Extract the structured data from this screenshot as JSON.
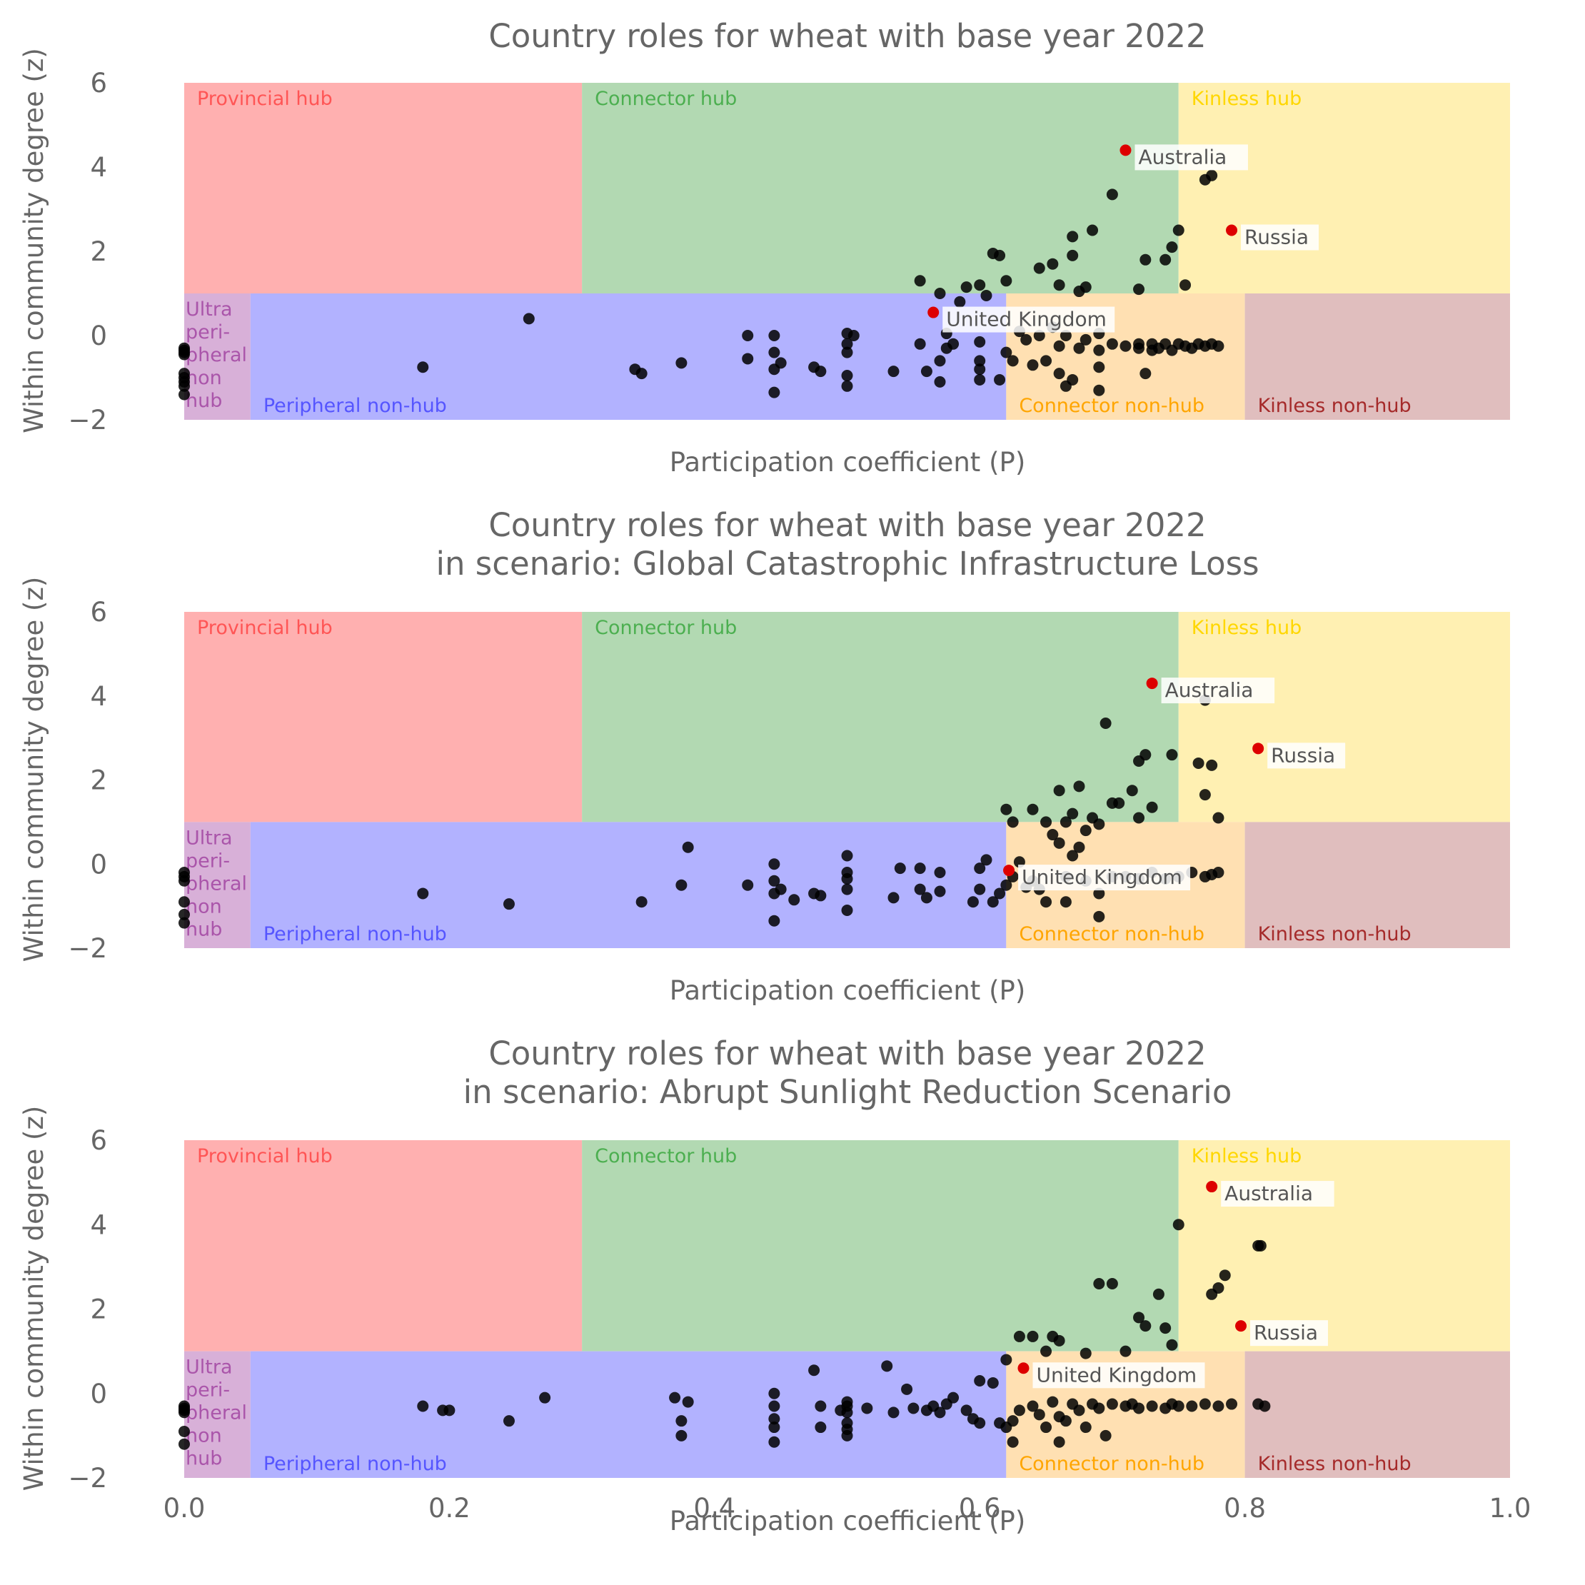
{
  "chart_data": [
    {
      "type": "scatter",
      "title": [
        "Country roles for wheat with base year 2022"
      ],
      "xlabel": "Participation coefficient (P)",
      "ylabel": "Within community degree (z)",
      "xlim": [
        0.0,
        1.0
      ],
      "ylim": [
        -2,
        6
      ],
      "x_ticks": [],
      "y_ticks": [
        "−2",
        "0",
        "2",
        "4",
        "6"
      ],
      "highlighted": [
        {
          "label": "Australia",
          "x": 0.71,
          "y": 4.4
        },
        {
          "label": "Russia",
          "x": 0.79,
          "y": 2.5
        },
        {
          "label": "United Kingdom",
          "x": 0.565,
          "y": 0.55
        }
      ],
      "points": [
        [
          0,
          -0.3
        ],
        [
          0,
          -0.35
        ],
        [
          0,
          -0.4
        ],
        [
          0,
          -0.45
        ],
        [
          0,
          -0.9
        ],
        [
          0,
          -1.0
        ],
        [
          0,
          -1.1
        ],
        [
          0,
          -1.2
        ],
        [
          0,
          -1.4
        ],
        [
          0.26,
          0.4
        ],
        [
          0.18,
          -0.75
        ],
        [
          0.34,
          -0.8
        ],
        [
          0.345,
          -0.9
        ],
        [
          0.375,
          -0.65
        ],
        [
          0.425,
          0
        ],
        [
          0.425,
          -0.55
        ],
        [
          0.445,
          0
        ],
        [
          0.445,
          -0.4
        ],
        [
          0.445,
          -0.8
        ],
        [
          0.445,
          -1.35
        ],
        [
          0.45,
          -0.65
        ],
        [
          0.475,
          -0.75
        ],
        [
          0.48,
          -0.85
        ],
        [
          0.5,
          0.05
        ],
        [
          0.5,
          -0.2
        ],
        [
          0.5,
          -0.4
        ],
        [
          0.5,
          -0.95
        ],
        [
          0.5,
          -1.2
        ],
        [
          0.505,
          0
        ],
        [
          0.535,
          -0.85
        ],
        [
          0.555,
          -0.2
        ],
        [
          0.56,
          -0.85
        ],
        [
          0.57,
          -0.6
        ],
        [
          0.57,
          -1.1
        ],
        [
          0.575,
          -0.3
        ],
        [
          0.575,
          0.05
        ],
        [
          0.58,
          -0.2
        ],
        [
          0.6,
          -0.6
        ],
        [
          0.6,
          -0.15
        ],
        [
          0.6,
          -0.8
        ],
        [
          0.6,
          -1.05
        ],
        [
          0.615,
          -1.05
        ],
        [
          0.62,
          -0.4
        ],
        [
          0.625,
          -0.6
        ],
        [
          0.63,
          0.1
        ],
        [
          0.635,
          -0.1
        ],
        [
          0.64,
          -0.7
        ],
        [
          0.645,
          0
        ],
        [
          0.65,
          -0.6
        ],
        [
          0.655,
          0.2
        ],
        [
          0.66,
          -0.25
        ],
        [
          0.66,
          -0.9
        ],
        [
          0.665,
          0
        ],
        [
          0.665,
          -1.2
        ],
        [
          0.67,
          -1.05
        ],
        [
          0.675,
          -0.3
        ],
        [
          0.68,
          -0.1
        ],
        [
          0.69,
          0.05
        ],
        [
          0.69,
          -0.35
        ],
        [
          0.69,
          -0.75
        ],
        [
          0.69,
          -1.3
        ],
        [
          0.7,
          -0.2
        ],
        [
          0.71,
          -0.25
        ],
        [
          0.72,
          -0.3
        ],
        [
          0.73,
          -0.35
        ],
        [
          0.72,
          -0.2
        ],
        [
          0.725,
          -0.9
        ],
        [
          0.73,
          -0.2
        ],
        [
          0.735,
          -0.3
        ],
        [
          0.74,
          -0.2
        ],
        [
          0.745,
          -0.35
        ],
        [
          0.75,
          -0.2
        ],
        [
          0.755,
          -0.25
        ],
        [
          0.76,
          -0.3
        ],
        [
          0.765,
          -0.2
        ],
        [
          0.77,
          -0.25
        ],
        [
          0.775,
          -0.2
        ],
        [
          0.78,
          -0.25
        ],
        [
          0.555,
          1.3
        ],
        [
          0.57,
          1.0
        ],
        [
          0.585,
          0.8
        ],
        [
          0.59,
          1.15
        ],
        [
          0.6,
          1.2
        ],
        [
          0.605,
          0.95
        ],
        [
          0.61,
          1.95
        ],
        [
          0.615,
          1.9
        ],
        [
          0.62,
          1.3
        ],
        [
          0.645,
          1.6
        ],
        [
          0.655,
          1.7
        ],
        [
          0.66,
          1.2
        ],
        [
          0.67,
          2.35
        ],
        [
          0.67,
          1.9
        ],
        [
          0.675,
          1.05
        ],
        [
          0.68,
          1.15
        ],
        [
          0.685,
          2.5
        ],
        [
          0.7,
          3.35
        ],
        [
          0.72,
          1.1
        ],
        [
          0.725,
          1.8
        ],
        [
          0.74,
          1.8
        ],
        [
          0.745,
          2.1
        ],
        [
          0.75,
          2.5
        ],
        [
          0.755,
          1.2
        ],
        [
          0.77,
          3.7
        ],
        [
          0.775,
          3.8
        ]
      ]
    },
    {
      "type": "scatter",
      "title": [
        "Country roles for wheat with base year 2022",
        "in scenario: Global Catastrophic Infrastructure Loss"
      ],
      "xlabel": "Participation coefficient (P)",
      "ylabel": "Within community degree (z)",
      "xlim": [
        0.0,
        1.0
      ],
      "ylim": [
        -2,
        6
      ],
      "x_ticks": [],
      "y_ticks": [
        "−2",
        "0",
        "2",
        "4",
        "6"
      ],
      "highlighted": [
        {
          "label": "Australia",
          "x": 0.73,
          "y": 4.3
        },
        {
          "label": "Russia",
          "x": 0.81,
          "y": 2.75
        },
        {
          "label": "United Kingdom",
          "x": 0.622,
          "y": -0.15
        }
      ],
      "points": [
        [
          0,
          -0.2
        ],
        [
          0,
          -0.3
        ],
        [
          0,
          -0.4
        ],
        [
          0,
          -0.9
        ],
        [
          0,
          -1.2
        ],
        [
          0,
          -1.4
        ],
        [
          0.18,
          -0.7
        ],
        [
          0.245,
          -0.95
        ],
        [
          0.345,
          -0.9
        ],
        [
          0.375,
          -0.5
        ],
        [
          0.38,
          0.4
        ],
        [
          0.425,
          -0.5
        ],
        [
          0.445,
          0
        ],
        [
          0.445,
          -0.4
        ],
        [
          0.445,
          -0.7
        ],
        [
          0.445,
          -1.35
        ],
        [
          0.45,
          -0.6
        ],
        [
          0.46,
          -0.85
        ],
        [
          0.475,
          -0.7
        ],
        [
          0.48,
          -0.75
        ],
        [
          0.5,
          0.2
        ],
        [
          0.5,
          -0.2
        ],
        [
          0.5,
          -0.35
        ],
        [
          0.5,
          -0.6
        ],
        [
          0.5,
          -1.1
        ],
        [
          0.535,
          -0.8
        ],
        [
          0.54,
          -0.1
        ],
        [
          0.555,
          -0.1
        ],
        [
          0.555,
          -0.6
        ],
        [
          0.56,
          -0.8
        ],
        [
          0.57,
          -0.2
        ],
        [
          0.57,
          -0.65
        ],
        [
          0.595,
          -0.9
        ],
        [
          0.6,
          -0.1
        ],
        [
          0.6,
          -0.6
        ],
        [
          0.605,
          0.1
        ],
        [
          0.61,
          -0.9
        ],
        [
          0.615,
          -0.7
        ],
        [
          0.62,
          -0.5
        ],
        [
          0.625,
          -0.3
        ],
        [
          0.63,
          0.05
        ],
        [
          0.635,
          -0.55
        ],
        [
          0.64,
          -0.4
        ],
        [
          0.645,
          -0.6
        ],
        [
          0.65,
          -0.9
        ],
        [
          0.655,
          0.7
        ],
        [
          0.66,
          0.5
        ],
        [
          0.665,
          -0.3
        ],
        [
          0.665,
          -0.9
        ],
        [
          0.67,
          0.2
        ],
        [
          0.675,
          0.4
        ],
        [
          0.68,
          -0.4
        ],
        [
          0.69,
          -0.7
        ],
        [
          0.69,
          -1.25
        ],
        [
          0.7,
          -0.3
        ],
        [
          0.71,
          -0.3
        ],
        [
          0.72,
          -0.35
        ],
        [
          0.73,
          -0.2
        ],
        [
          0.74,
          -0.35
        ],
        [
          0.75,
          -0.3
        ],
        [
          0.76,
          -0.2
        ],
        [
          0.77,
          -0.3
        ],
        [
          0.775,
          -0.25
        ],
        [
          0.78,
          -0.2
        ],
        [
          0.62,
          1.3
        ],
        [
          0.625,
          1.0
        ],
        [
          0.64,
          1.3
        ],
        [
          0.65,
          1.0
        ],
        [
          0.66,
          1.75
        ],
        [
          0.665,
          1.0
        ],
        [
          0.67,
          1.2
        ],
        [
          0.675,
          1.85
        ],
        [
          0.68,
          0.8
        ],
        [
          0.685,
          1.1
        ],
        [
          0.69,
          0.95
        ],
        [
          0.695,
          3.35
        ],
        [
          0.7,
          1.45
        ],
        [
          0.705,
          1.45
        ],
        [
          0.715,
          1.75
        ],
        [
          0.72,
          2.45
        ],
        [
          0.72,
          1.1
        ],
        [
          0.725,
          2.6
        ],
        [
          0.73,
          1.35
        ],
        [
          0.745,
          2.6
        ],
        [
          0.765,
          2.4
        ],
        [
          0.77,
          1.65
        ],
        [
          0.775,
          2.35
        ],
        [
          0.78,
          1.1
        ],
        [
          0.77,
          3.9
        ]
      ]
    },
    {
      "type": "scatter",
      "title": [
        "Country roles for wheat with base year 2022",
        "in scenario: Abrupt Sunlight Reduction Scenario"
      ],
      "xlabel": "Participation coefficient (P)",
      "ylabel": "Within community degree (z)",
      "xlim": [
        0.0,
        1.0
      ],
      "ylim": [
        -2,
        6
      ],
      "x_ticks": [
        "0.0",
        "0.2",
        "0.4",
        "0.6",
        "0.8",
        "1.0"
      ],
      "y_ticks": [
        "−2",
        "0",
        "2",
        "4",
        "6"
      ],
      "highlighted": [
        {
          "label": "Australia",
          "x": 0.775,
          "y": 4.9
        },
        {
          "label": "Russia",
          "x": 0.797,
          "y": 1.6
        },
        {
          "label": "United Kingdom",
          "x": 0.633,
          "y": 0.6
        }
      ],
      "points": [
        [
          0,
          -0.3
        ],
        [
          0,
          -0.35
        ],
        [
          0,
          -0.4
        ],
        [
          0,
          -0.45
        ],
        [
          0,
          -0.9
        ],
        [
          0,
          -1.2
        ],
        [
          0.18,
          -0.3
        ],
        [
          0.195,
          -0.4
        ],
        [
          0.2,
          -0.4
        ],
        [
          0.245,
          -0.65
        ],
        [
          0.272,
          -0.1
        ],
        [
          0.37,
          -0.1
        ],
        [
          0.375,
          -0.65
        ],
        [
          0.375,
          -1.0
        ],
        [
          0.38,
          -0.2
        ],
        [
          0.445,
          0
        ],
        [
          0.445,
          -0.3
        ],
        [
          0.445,
          -0.6
        ],
        [
          0.445,
          -0.8
        ],
        [
          0.445,
          -1.15
        ],
        [
          0.475,
          0.55
        ],
        [
          0.48,
          -0.3
        ],
        [
          0.48,
          -0.8
        ],
        [
          0.495,
          -0.4
        ],
        [
          0.5,
          -0.2
        ],
        [
          0.5,
          -0.3
        ],
        [
          0.5,
          -0.45
        ],
        [
          0.5,
          -0.7
        ],
        [
          0.5,
          -0.85
        ],
        [
          0.5,
          -1.0
        ],
        [
          0.515,
          -0.35
        ],
        [
          0.53,
          0.65
        ],
        [
          0.535,
          -0.45
        ],
        [
          0.545,
          0.1
        ],
        [
          0.55,
          -0.35
        ],
        [
          0.56,
          -0.4
        ],
        [
          0.565,
          -0.3
        ],
        [
          0.57,
          -0.45
        ],
        [
          0.575,
          -0.25
        ],
        [
          0.58,
          -0.1
        ],
        [
          0.59,
          -0.4
        ],
        [
          0.595,
          -0.6
        ],
        [
          0.6,
          0.3
        ],
        [
          0.6,
          -0.7
        ],
        [
          0.61,
          0.25
        ],
        [
          0.615,
          -0.7
        ],
        [
          0.62,
          -0.8
        ],
        [
          0.625,
          -0.65
        ],
        [
          0.625,
          -1.15
        ],
        [
          0.63,
          -0.4
        ],
        [
          0.64,
          -0.3
        ],
        [
          0.645,
          -0.5
        ],
        [
          0.65,
          -0.8
        ],
        [
          0.655,
          -0.2
        ],
        [
          0.66,
          -0.55
        ],
        [
          0.66,
          -1.15
        ],
        [
          0.665,
          -0.65
        ],
        [
          0.67,
          -0.25
        ],
        [
          0.675,
          -0.4
        ],
        [
          0.68,
          -0.8
        ],
        [
          0.685,
          -0.25
        ],
        [
          0.69,
          -0.35
        ],
        [
          0.695,
          -1.0
        ],
        [
          0.7,
          -0.25
        ],
        [
          0.71,
          -0.3
        ],
        [
          0.715,
          -0.25
        ],
        [
          0.72,
          -0.35
        ],
        [
          0.73,
          -0.3
        ],
        [
          0.74,
          -0.35
        ],
        [
          0.745,
          -0.25
        ],
        [
          0.75,
          -0.3
        ],
        [
          0.76,
          -0.3
        ],
        [
          0.77,
          -0.25
        ],
        [
          0.78,
          -0.3
        ],
        [
          0.79,
          -0.25
        ],
        [
          0.815,
          -0.3
        ],
        [
          0.81,
          -0.25
        ],
        [
          0.62,
          0.8
        ],
        [
          0.63,
          1.35
        ],
        [
          0.64,
          1.35
        ],
        [
          0.65,
          1.0
        ],
        [
          0.655,
          1.35
        ],
        [
          0.66,
          1.25
        ],
        [
          0.68,
          0.95
        ],
        [
          0.69,
          2.6
        ],
        [
          0.7,
          2.6
        ],
        [
          0.71,
          1.0
        ],
        [
          0.72,
          1.8
        ],
        [
          0.725,
          1.6
        ],
        [
          0.735,
          2.35
        ],
        [
          0.74,
          1.55
        ],
        [
          0.745,
          1.15
        ],
        [
          0.75,
          4.0
        ],
        [
          0.775,
          2.35
        ],
        [
          0.78,
          2.5
        ],
        [
          0.785,
          2.8
        ],
        [
          0.81,
          3.5
        ],
        [
          0.812,
          3.5
        ]
      ]
    }
  ],
  "regions": {
    "provincial_hub": {
      "label": "Provincial hub",
      "fill": "#ffb0b0",
      "text_color": "#ff5555"
    },
    "connector_hub": {
      "label": "Connector hub",
      "fill": "#b2d9b2",
      "text_color": "#4caf50"
    },
    "kinless_hub": {
      "label": "Kinless hub",
      "fill": "#fff0b2",
      "text_color": "#ffd700"
    },
    "ultra_peripheral": {
      "label_lines": [
        "Ultra",
        "peri-",
        "pheral",
        "non",
        "hub"
      ],
      "fill": "#d8b0d8",
      "text_color": "#aa55aa"
    },
    "peripheral_non_hub": {
      "label": "Peripheral non-hub",
      "fill": "#b2b2ff",
      "text_color": "#5555ff"
    },
    "connector_non_hub": {
      "label": "Connector non-hub",
      "fill": "#ffe0b2",
      "text_color": "#ffa500"
    },
    "kinless_non_hub": {
      "label": "Kinless non-hub",
      "fill": "#e0bebe",
      "text_color": "#a52a2a"
    }
  },
  "colors": {
    "point": "#000000",
    "highlight": "#dd0000"
  }
}
